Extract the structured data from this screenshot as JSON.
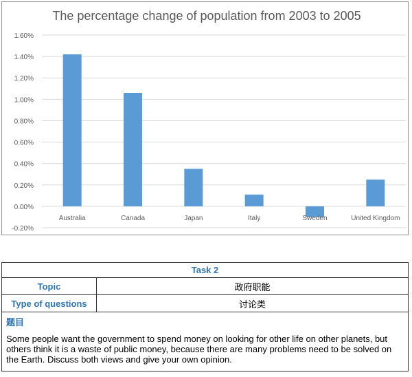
{
  "chart_data": {
    "type": "bar",
    "title": "The percentage change of population from 2003 to 2005",
    "categories": [
      "Australia",
      "Canada",
      "Japan",
      "Italy",
      "Sweden",
      "United Kingdom"
    ],
    "values": [
      1.42,
      1.06,
      0.35,
      0.11,
      -0.1,
      0.25
    ],
    "unit": "%",
    "xlabel": "",
    "ylabel": "",
    "ylim": [
      -0.2,
      1.6
    ],
    "yticks": [
      -0.2,
      0.0,
      0.2,
      0.4,
      0.6,
      0.8,
      1.0,
      1.2,
      1.4,
      1.6
    ],
    "ytick_labels": [
      "-0.20%",
      "0.00%",
      "0.20%",
      "0.40%",
      "0.60%",
      "0.80%",
      "1.00%",
      "1.20%",
      "1.40%",
      "1.60%"
    ],
    "grid": true,
    "legend": "none",
    "colors": {
      "bar": "#5b9bd5",
      "grid": "#d9d9d9",
      "axis_text": "#595959",
      "title": "#595959"
    }
  },
  "task": {
    "header": "Task 2",
    "topic_label": "Topic",
    "topic_value": "政府职能",
    "type_label": "Type of questions",
    "type_value": "讨论类",
    "question_title": "题目",
    "question_text": "Some people want the government to spend money on looking for other life on other planets, but others think it is a waste of public money, because there are many problems need to be solved on the Earth. Discuss both views and give your own opinion."
  }
}
